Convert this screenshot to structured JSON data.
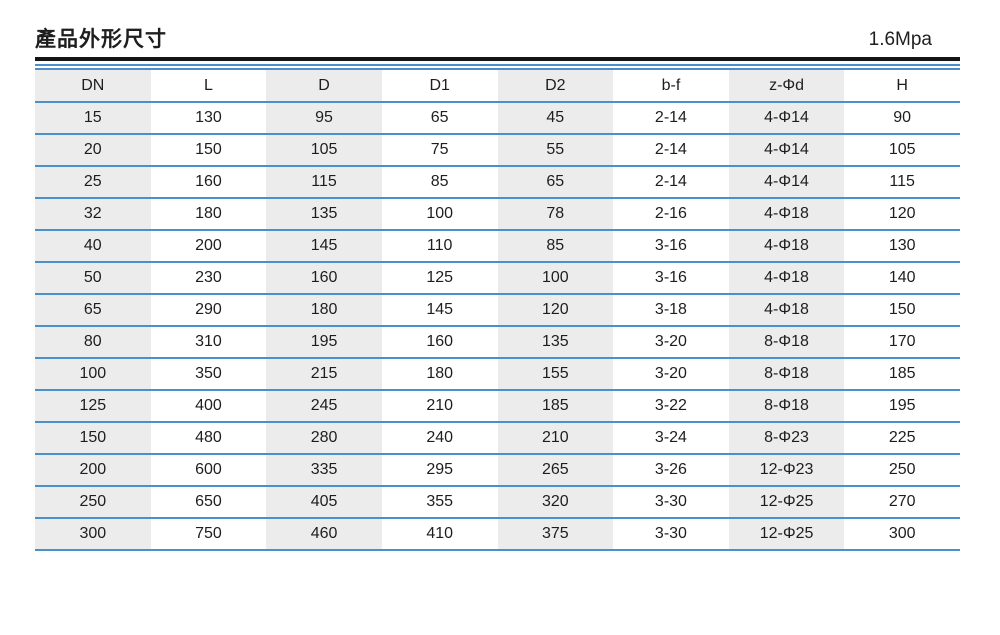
{
  "header": {
    "title": "產品外形尺寸",
    "pressure_rating": "1.6Mpa"
  },
  "table": {
    "columns": [
      "DN",
      "L",
      "D",
      "D1",
      "D2",
      "b-f",
      "z-Φd",
      "H"
    ],
    "rows": [
      [
        "15",
        "130",
        "95",
        "65",
        "45",
        "2-14",
        "4-Φ14",
        "90"
      ],
      [
        "20",
        "150",
        "105",
        "75",
        "55",
        "2-14",
        "4-Φ14",
        "105"
      ],
      [
        "25",
        "160",
        "115",
        "85",
        "65",
        "2-14",
        "4-Φ14",
        "115"
      ],
      [
        "32",
        "180",
        "135",
        "100",
        "78",
        "2-16",
        "4-Φ18",
        "120"
      ],
      [
        "40",
        "200",
        "145",
        "110",
        "85",
        "3-16",
        "4-Φ18",
        "130"
      ],
      [
        "50",
        "230",
        "160",
        "125",
        "100",
        "3-16",
        "4-Φ18",
        "140"
      ],
      [
        "65",
        "290",
        "180",
        "145",
        "120",
        "3-18",
        "4-Φ18",
        "150"
      ],
      [
        "80",
        "310",
        "195",
        "160",
        "135",
        "3-20",
        "8-Φ18",
        "170"
      ],
      [
        "100",
        "350",
        "215",
        "180",
        "155",
        "3-20",
        "8-Φ18",
        "185"
      ],
      [
        "125",
        "400",
        "245",
        "210",
        "185",
        "3-22",
        "8-Φ18",
        "195"
      ],
      [
        "150",
        "480",
        "280",
        "240",
        "210",
        "3-24",
        "8-Φ23",
        "225"
      ],
      [
        "200",
        "600",
        "335",
        "295",
        "265",
        "3-26",
        "12-Φ23",
        "250"
      ],
      [
        "250",
        "650",
        "405",
        "355",
        "320",
        "3-30",
        "12-Φ25",
        "270"
      ],
      [
        "300",
        "750",
        "460",
        "410",
        "375",
        "3-30",
        "12-Φ25",
        "300"
      ]
    ]
  },
  "colors": {
    "line_blue": "#4a91cb",
    "shade_gray": "#ececec",
    "rule_black": "#161412",
    "text": "#1e1e1e"
  }
}
